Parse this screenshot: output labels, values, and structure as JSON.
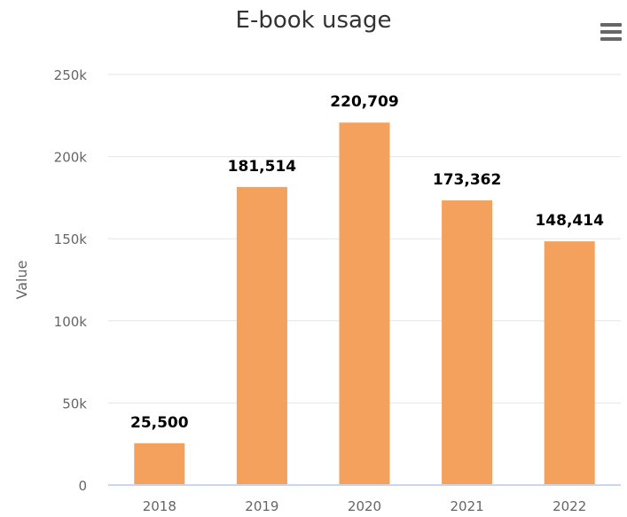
{
  "chart_data": {
    "type": "bar",
    "title": "E-book usage",
    "ylabel": "Value",
    "categories": [
      "2018",
      "2019",
      "2020",
      "2021",
      "2022"
    ],
    "values": [
      25500,
      181514,
      220709,
      173362,
      148414
    ],
    "data_labels": [
      "25,500",
      "181,514",
      "220,709",
      "173,362",
      "148,414"
    ],
    "yticks": [
      0,
      50000,
      100000,
      150000,
      200000,
      250000
    ],
    "ytick_labels": [
      "0",
      "50k",
      "100k",
      "150k",
      "200k",
      "250k"
    ],
    "ylim": [
      0,
      250000
    ],
    "grid": true,
    "legend": false,
    "bar_color": "#f4a15d"
  },
  "menu": {
    "icon": "hamburger-menu-icon"
  }
}
